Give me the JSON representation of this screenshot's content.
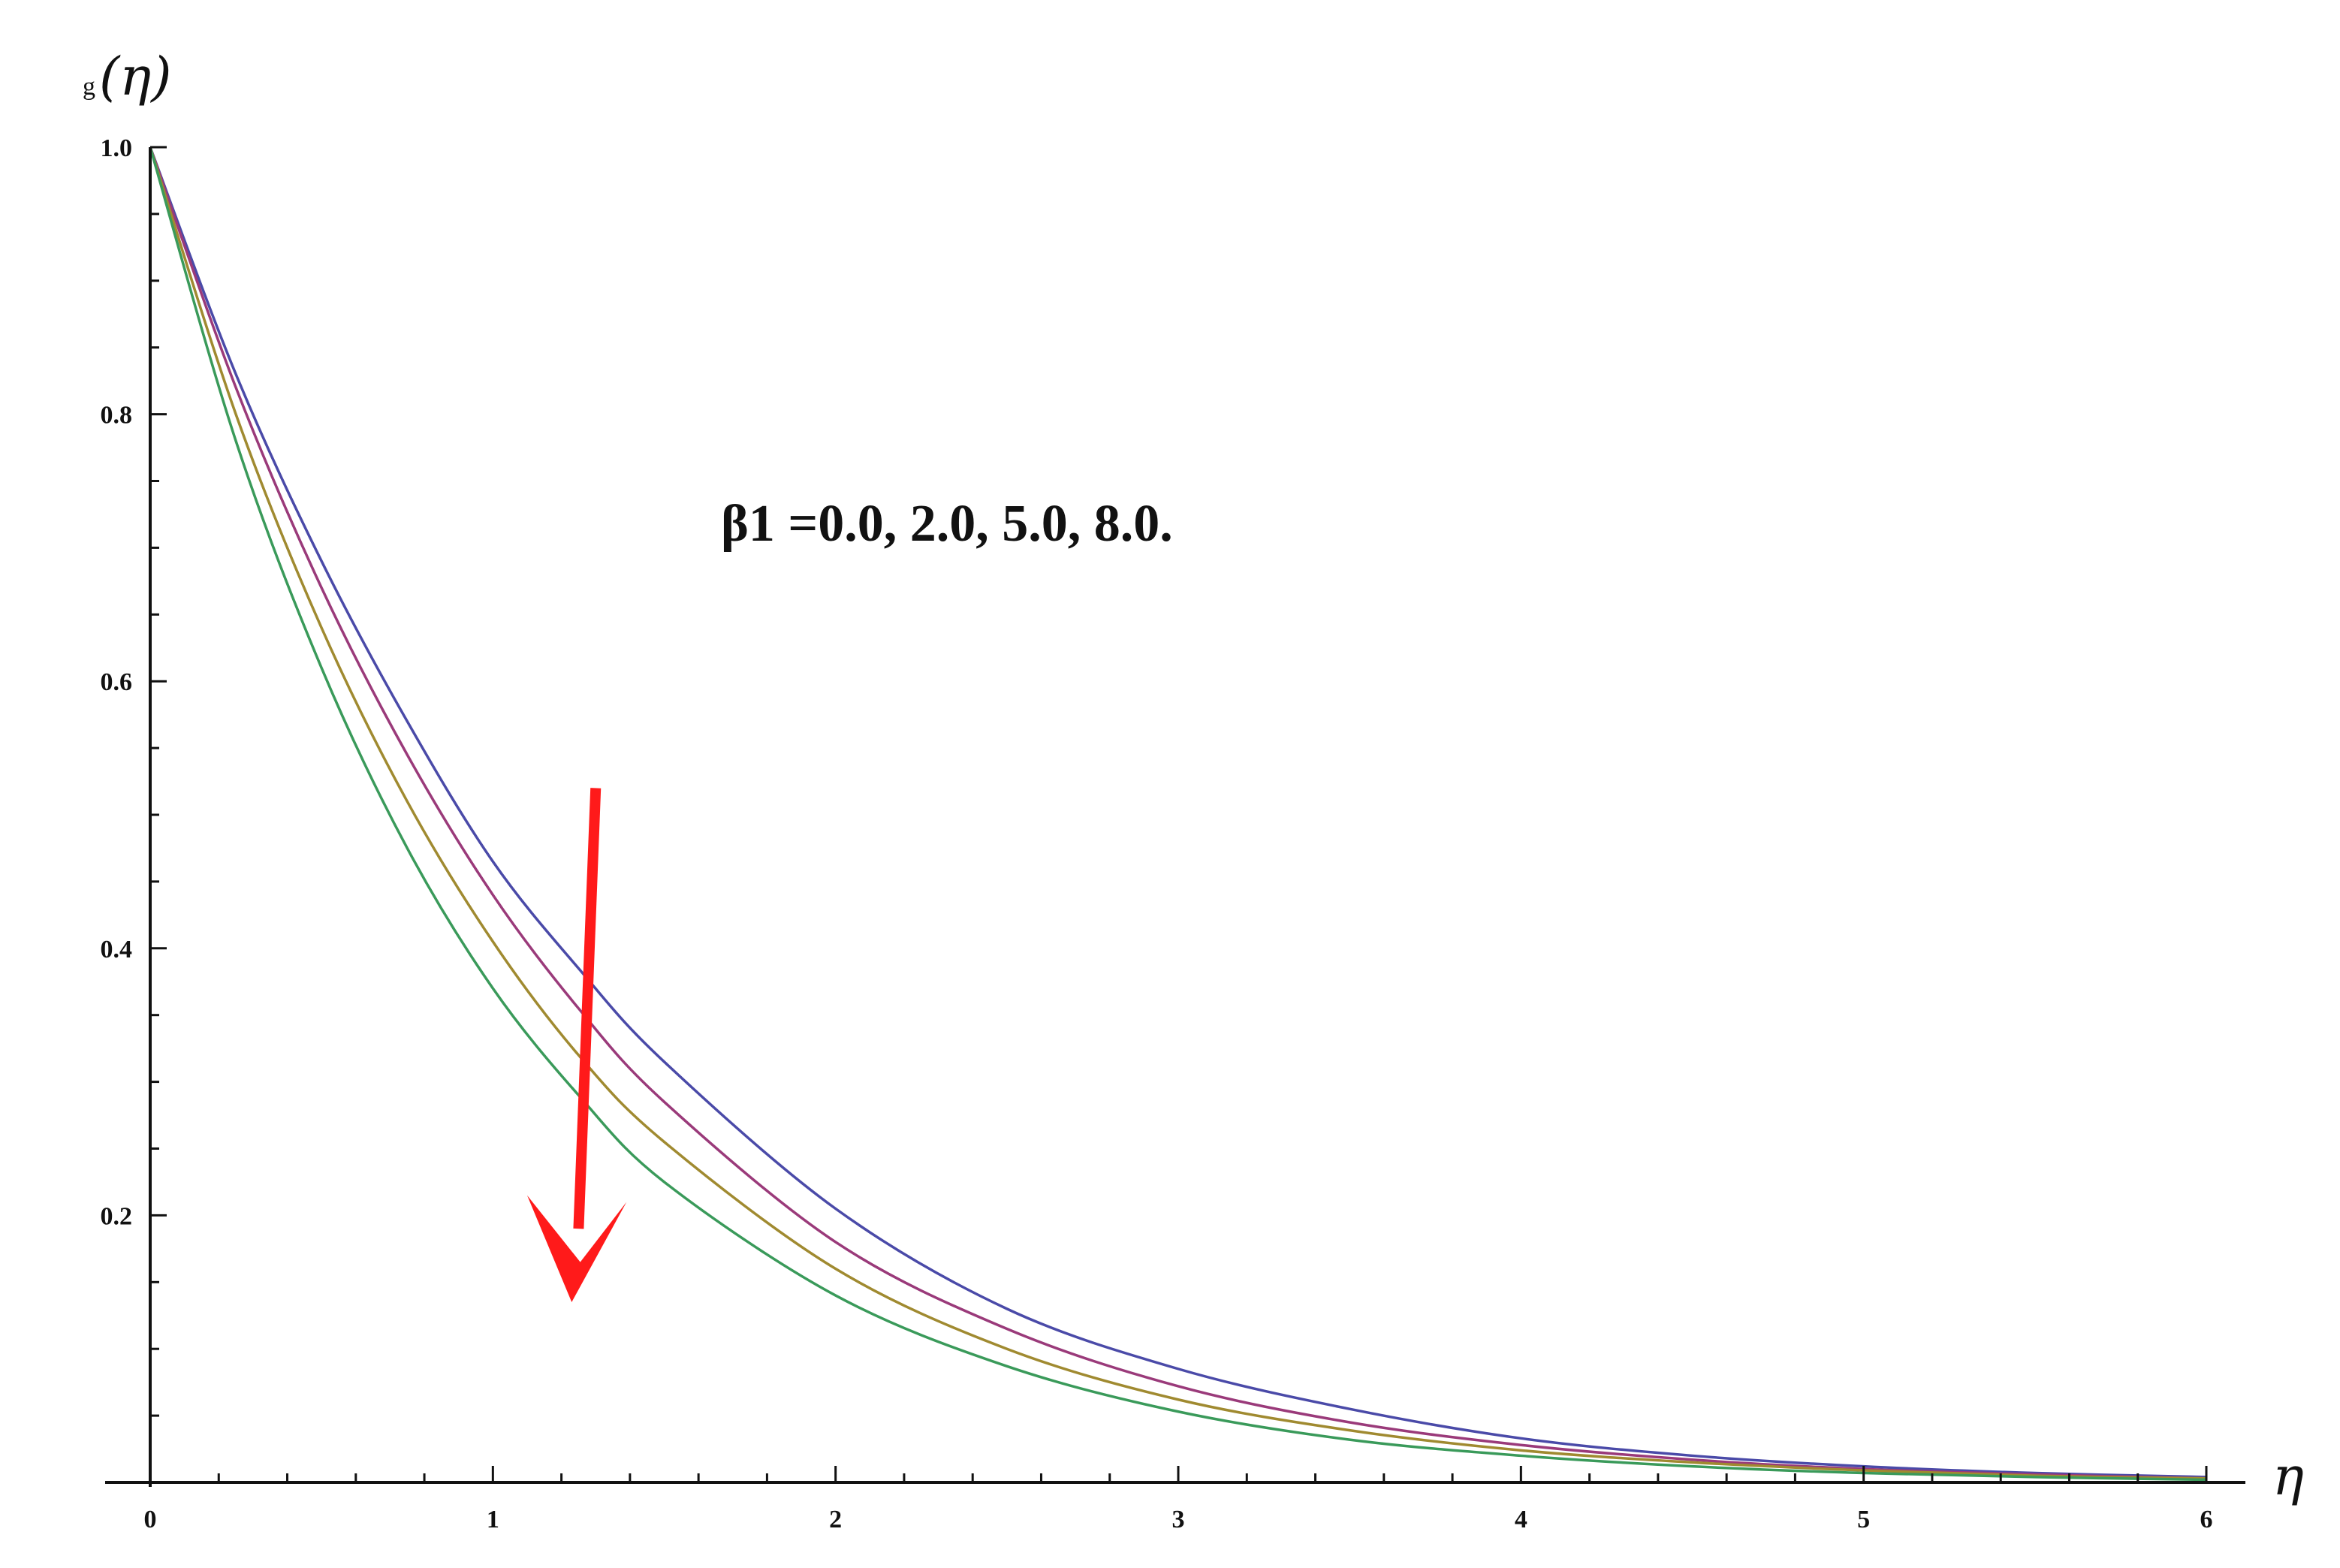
{
  "chart_data": {
    "type": "line",
    "title": "",
    "xlabel": "η",
    "ylabel_prefix": "g",
    "ylabel_main": "(η)",
    "xlim": [
      0,
      6
    ],
    "ylim": [
      0,
      1.0
    ],
    "x_ticks": [
      "0",
      "1",
      "2",
      "3",
      "4",
      "5",
      "6"
    ],
    "y_ticks": [
      "0.2",
      "0.4",
      "0.6",
      "0.8",
      "1.0"
    ],
    "annotation": "β1 =0.0, 2.0, 5.0, 8.0.",
    "arrow_color": "#ff1a1a",
    "x": [
      0,
      0.25,
      0.5,
      0.75,
      1.0,
      1.25,
      1.5,
      2.0,
      2.5,
      3.0,
      3.5,
      4.0,
      4.5,
      5.0,
      5.5,
      6.0
    ],
    "series": [
      {
        "color": "#4a4aa8",
        "values": [
          1.0,
          0.83,
          0.69,
          0.57,
          0.465,
          0.385,
          0.315,
          0.205,
          0.13,
          0.085,
          0.055,
          0.033,
          0.02,
          0.012,
          0.007,
          0.004
        ]
      },
      {
        "color": "#9a3a7a",
        "values": [
          1.0,
          0.82,
          0.67,
          0.545,
          0.44,
          0.355,
          0.285,
          0.18,
          0.115,
          0.072,
          0.045,
          0.028,
          0.017,
          0.01,
          0.006,
          0.003
        ]
      },
      {
        "color": "#a08a30",
        "values": [
          1.0,
          0.8,
          0.64,
          0.51,
          0.405,
          0.32,
          0.255,
          0.16,
          0.1,
          0.062,
          0.039,
          0.024,
          0.015,
          0.009,
          0.005,
          0.003
        ]
      },
      {
        "color": "#3a9a5a",
        "values": [
          1.0,
          0.78,
          0.61,
          0.475,
          0.37,
          0.29,
          0.225,
          0.14,
          0.087,
          0.053,
          0.032,
          0.02,
          0.012,
          0.007,
          0.004,
          0.002
        ]
      }
    ]
  }
}
